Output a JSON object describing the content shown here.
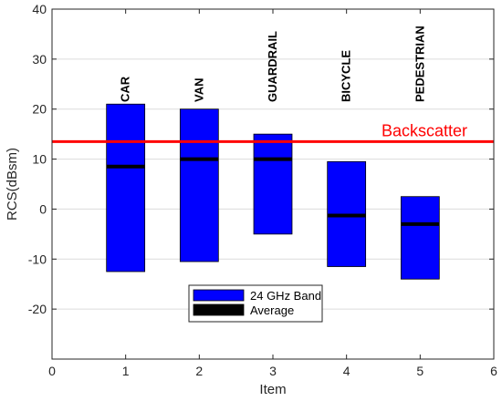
{
  "chart_data": {
    "type": "bar",
    "xlabel": "Item",
    "ylabel": "RCS(dBsm)",
    "xlim": [
      0,
      6
    ],
    "ylim": [
      -30,
      40
    ],
    "xticks": [
      0,
      1,
      2,
      3,
      4,
      5,
      6
    ],
    "yticks": [
      -20,
      -10,
      0,
      10,
      20,
      30,
      40
    ],
    "grid": true,
    "categories": [
      "CAR",
      "VAN",
      "GUARDRAIL",
      "BICYCLE",
      "PEDESTRIAN"
    ],
    "x": [
      1,
      2,
      3,
      4,
      5
    ],
    "series": [
      {
        "name": "24 GHz Band",
        "kind": "range",
        "color": "#0000ff",
        "low": [
          -12.5,
          -10.5,
          -5,
          -11.5,
          -14
        ],
        "high": [
          21,
          20,
          15,
          9.5,
          2.5
        ]
      },
      {
        "name": "Average",
        "kind": "marker",
        "color": "#000000",
        "values": [
          8.5,
          10,
          10,
          -1.3,
          -3
        ]
      }
    ],
    "reference_line": {
      "label": "Backscatter",
      "value": 13.5,
      "color": "#ff0000"
    },
    "legend": {
      "position": "bottom-center",
      "entries": [
        "24 GHz Band",
        "Average"
      ]
    }
  }
}
